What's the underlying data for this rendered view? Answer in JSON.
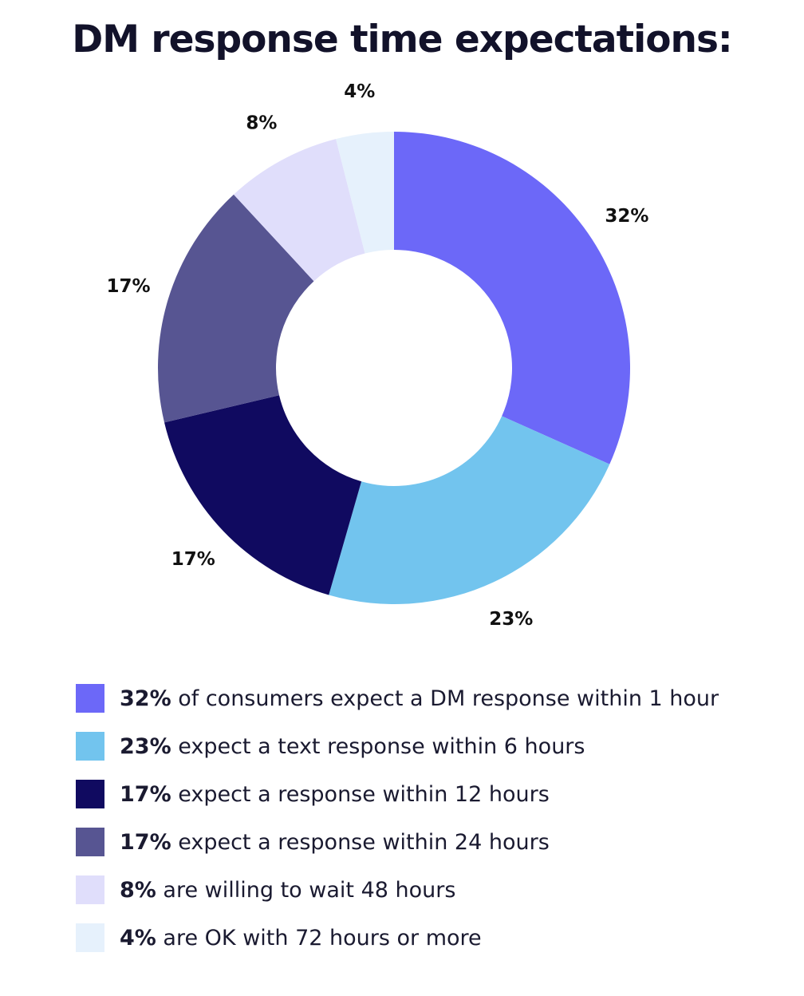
{
  "title": "DM response time expectations:",
  "chart_data": {
    "type": "pie",
    "style": "donut",
    "title": "DM response time expectations:",
    "slices": [
      {
        "label": "32%",
        "value": 32,
        "color": "#6c68f8"
      },
      {
        "label": "23%",
        "value": 23,
        "color": "#72c4ee"
      },
      {
        "label": "17%",
        "value": 17,
        "color": "#100a60"
      },
      {
        "label": "17%",
        "value": 17,
        "color": "#575592"
      },
      {
        "label": "8%",
        "value": 8,
        "color": "#e0defb"
      },
      {
        "label": "4%",
        "value": 4,
        "color": "#e6f1fc"
      }
    ],
    "start": "top",
    "direction": "clockwise",
    "legend_position": "bottom"
  },
  "legend": [
    {
      "pct": "32%",
      "text": " of consumers expect a DM response within 1 hour",
      "color": "#6c68f8"
    },
    {
      "pct": "23%",
      "text": " expect a text response within 6 hours",
      "color": "#72c4ee"
    },
    {
      "pct": "17%",
      "text": " expect a response within 12 hours",
      "color": "#100a60"
    },
    {
      "pct": "17%",
      "text": " expect a response within 24 hours",
      "color": "#575592"
    },
    {
      "pct": "8%",
      "text": " are willing to wait 48 hours",
      "color": "#e0defb"
    },
    {
      "pct": "4%",
      "text": " are OK with 72 hours or more",
      "color": "#e6f1fc"
    }
  ]
}
